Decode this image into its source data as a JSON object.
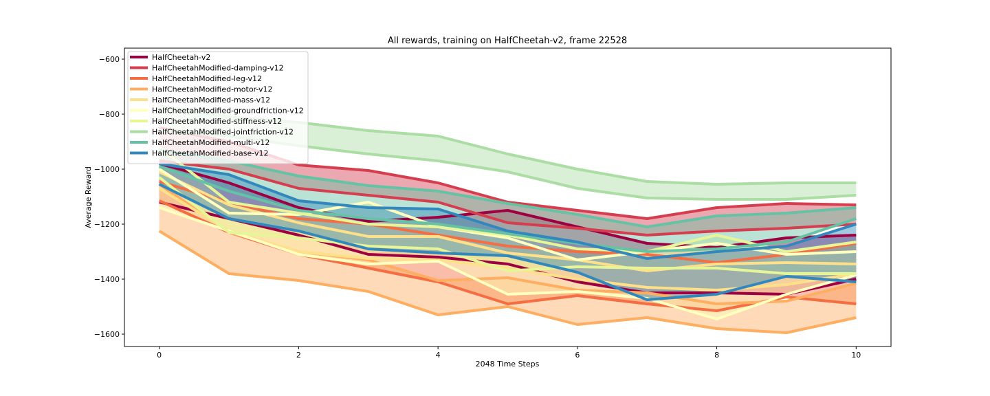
{
  "chart_data": {
    "type": "line",
    "title": "All rewards, training on HalfCheetah-v2, frame 22528",
    "xlabel": "2048 Time Steps",
    "ylabel": "Average Reward",
    "xlim": [
      -0.5,
      10.5
    ],
    "ylim": [
      -1645,
      -560
    ],
    "xticks": [
      0,
      2,
      4,
      6,
      8,
      10
    ],
    "yticks": [
      -600,
      -800,
      -1000,
      -1200,
      -1400,
      -1600
    ],
    "legend_position": "top-left",
    "x": [
      0,
      1,
      2,
      3,
      4,
      5,
      6,
      7,
      8,
      9,
      10
    ],
    "series": [
      {
        "name": "HalfCheetah-v2",
        "color": "#9e0142",
        "upper": [
          -980,
          -1050,
          -1140,
          -1190,
          -1175,
          -1150,
          -1210,
          -1270,
          -1285,
          -1250,
          -1240
        ],
        "lower": [
          -1120,
          -1180,
          -1240,
          -1310,
          -1320,
          -1345,
          -1410,
          -1450,
          -1450,
          -1455,
          -1400
        ]
      },
      {
        "name": "HalfCheetahModified-damping-v12",
        "color": "#d53e4f",
        "upper": [
          -850,
          -900,
          -985,
          -1005,
          -1050,
          -1120,
          -1150,
          -1180,
          -1140,
          -1125,
          -1130
        ],
        "lower": [
          -970,
          -1000,
          -1070,
          -1095,
          -1120,
          -1195,
          -1215,
          -1240,
          -1225,
          -1215,
          -1200
        ]
      },
      {
        "name": "HalfCheetahModified-leg-v12",
        "color": "#f46d43",
        "upper": [
          -1045,
          -1120,
          -1180,
          -1200,
          -1240,
          -1280,
          -1300,
          -1310,
          -1340,
          -1310,
          -1270
        ],
        "lower": [
          -1115,
          -1230,
          -1310,
          -1360,
          -1410,
          -1490,
          -1460,
          -1490,
          -1515,
          -1465,
          -1490
        ]
      },
      {
        "name": "HalfCheetahModified-motor-v12",
        "color": "#fdae61",
        "upper": [
          -1055,
          -1230,
          -1300,
          -1330,
          -1405,
          -1395,
          -1440,
          -1450,
          -1490,
          -1480,
          -1415
        ],
        "lower": [
          -1225,
          -1380,
          -1405,
          -1445,
          -1530,
          -1500,
          -1565,
          -1540,
          -1580,
          -1595,
          -1540
        ]
      },
      {
        "name": "HalfCheetahModified-mass-v12",
        "color": "#fee08b",
        "upper": [
          -1010,
          -1130,
          -1195,
          -1245,
          -1245,
          -1305,
          -1330,
          -1370,
          -1345,
          -1340,
          -1345
        ],
        "lower": [
          -1070,
          -1225,
          -1300,
          -1325,
          -1330,
          -1360,
          -1400,
          -1430,
          -1440,
          -1420,
          -1380
        ]
      },
      {
        "name": "HalfCheetahModified-groundfriction-v12",
        "color": "#ffffbf",
        "upper": [
          -1000,
          -1160,
          -1165,
          -1120,
          -1210,
          -1250,
          -1330,
          -1300,
          -1270,
          -1310,
          -1300
        ],
        "lower": [
          -1140,
          -1225,
          -1310,
          -1345,
          -1335,
          -1455,
          -1445,
          -1470,
          -1545,
          -1455,
          -1385
        ]
      },
      {
        "name": "HalfCheetahModified-stiffness-v12",
        "color": "#e6f598",
        "upper": [
          -920,
          -1120,
          -1160,
          -1200,
          -1210,
          -1240,
          -1290,
          -1300,
          -1240,
          -1300,
          -1265
        ],
        "lower": [
          -1030,
          -1230,
          -1250,
          -1280,
          -1290,
          -1370,
          -1355,
          -1360,
          -1360,
          -1380,
          -1380
        ]
      },
      {
        "name": "HalfCheetahModified-jointfriction-v12",
        "color": "#abdda4",
        "upper": [
          -770,
          -810,
          -830,
          -860,
          -880,
          -945,
          -1000,
          -1045,
          -1055,
          -1050,
          -1050
        ],
        "lower": [
          -860,
          -880,
          -915,
          -945,
          -970,
          -1010,
          -1070,
          -1105,
          -1110,
          -1110,
          -1095
        ]
      },
      {
        "name": "HalfCheetahModified-multi-v12",
        "color": "#66c2a5",
        "upper": [
          -930,
          -970,
          -1025,
          -1060,
          -1080,
          -1125,
          -1165,
          -1210,
          -1170,
          -1160,
          -1140
        ],
        "lower": [
          -990,
          -1080,
          -1150,
          -1180,
          -1200,
          -1235,
          -1270,
          -1300,
          -1290,
          -1265,
          -1180
        ]
      },
      {
        "name": "HalfCheetahModified-base-v12",
        "color": "#3288bd",
        "upper": [
          -980,
          -1020,
          -1115,
          -1140,
          -1145,
          -1225,
          -1265,
          -1325,
          -1300,
          -1280,
          -1200
        ],
        "lower": [
          -1055,
          -1180,
          -1225,
          -1290,
          -1305,
          -1315,
          -1375,
          -1475,
          -1455,
          -1390,
          -1410
        ]
      }
    ]
  }
}
